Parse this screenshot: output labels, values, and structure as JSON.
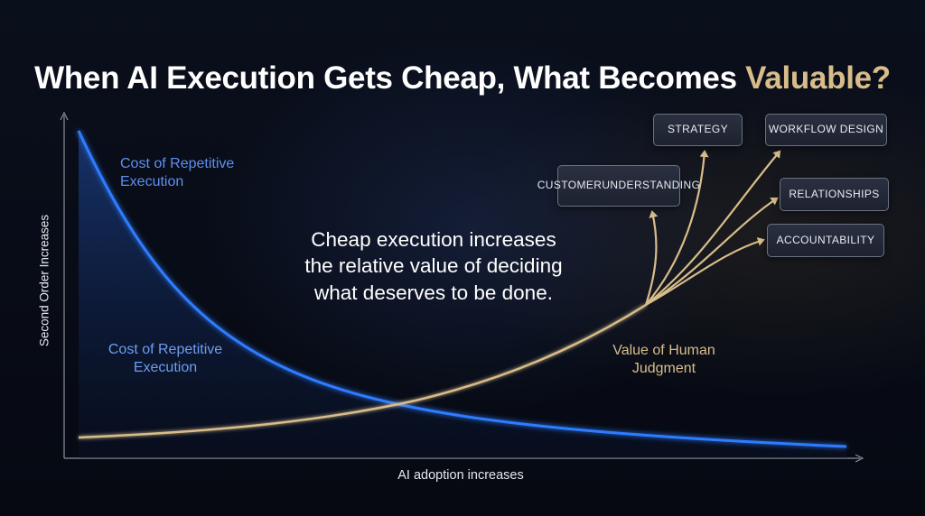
{
  "title": {
    "prefix": "When AI Execution Gets Cheap, What Becomes ",
    "accent": "Valuable?"
  },
  "axes": {
    "x_label": "AI adoption increases",
    "y_label": "Second Order Increases"
  },
  "curves": {
    "cost_label_top_line1": "Cost of Repetitive",
    "cost_label_top_line2": "Execution",
    "cost_label_bottom_line1": "Cost of Repetitive",
    "cost_label_bottom_line2": "Execution",
    "value_label_line1": "Value of Human",
    "value_label_line2": "Judgment"
  },
  "center_text": {
    "line1": "Cheap execution increases",
    "line2": "the relative value of deciding",
    "line3": "what deserves to be done."
  },
  "outcomes": {
    "strategy": "STRATEGY",
    "workflow_design": "WORKFLOW DESIGN",
    "customer_line1": "CUSTOMER",
    "customer_line2": "UNDERSTANDING",
    "relationships": "RELATIONSHIPS",
    "accountability": "ACCOUNTABILITY"
  },
  "colors": {
    "cost_curve": "#2f7bff",
    "value_curve": "#d8bd8a",
    "accent": "#d8bd8a",
    "background": "#070b14"
  }
}
